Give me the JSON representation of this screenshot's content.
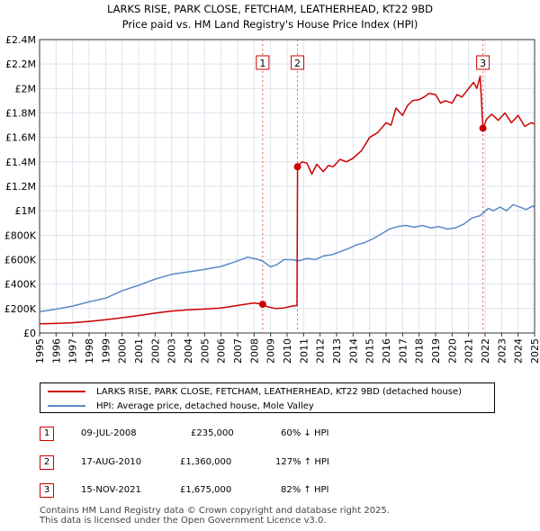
{
  "title_line1": "LARKS RISE, PARK CLOSE, FETCHAM, LEATHERHEAD, KT22 9BD",
  "title_line2": "Price paid vs. HM Land Registry's House Price Index (HPI)",
  "colors": {
    "property": "#cc0000",
    "hpi": "#5b8ac6",
    "grid": "#dde3ee",
    "vline": "#e06666"
  },
  "chart_data": {
    "type": "line",
    "title": "LARKS RISE, PARK CLOSE, FETCHAM, LEATHERHEAD, KT22 9BD — Price paid vs. HM Land Registry's House Price Index (HPI)",
    "xlabel": "",
    "ylabel": "",
    "xlim": [
      1995,
      2025
    ],
    "ylim": [
      0,
      2400000
    ],
    "grid": true,
    "y_ticks": [
      {
        "value": 0,
        "label": "£0"
      },
      {
        "value": 200000,
        "label": "£200K"
      },
      {
        "value": 400000,
        "label": "£400K"
      },
      {
        "value": 600000,
        "label": "£600K"
      },
      {
        "value": 800000,
        "label": "£800K"
      },
      {
        "value": 1000000,
        "label": "£1M"
      },
      {
        "value": 1200000,
        "label": "£1.2M"
      },
      {
        "value": 1400000,
        "label": "£1.4M"
      },
      {
        "value": 1600000,
        "label": "£1.6M"
      },
      {
        "value": 1800000,
        "label": "£1.8M"
      },
      {
        "value": 2000000,
        "label": "£2M"
      },
      {
        "value": 2200000,
        "label": "£2.2M"
      },
      {
        "value": 2400000,
        "label": "£2.4M"
      }
    ],
    "x_ticks": [
      "1995",
      "1996",
      "1997",
      "1998",
      "1999",
      "2000",
      "2001",
      "2002",
      "2003",
      "2004",
      "2005",
      "2006",
      "2007",
      "2008",
      "2009",
      "2010",
      "2011",
      "2012",
      "2013",
      "2014",
      "2015",
      "2016",
      "2017",
      "2018",
      "2019",
      "2020",
      "2021",
      "2022",
      "2023",
      "2024",
      "2025"
    ],
    "series": [
      {
        "name": "LARKS RISE, PARK CLOSE, FETCHAM, LEATHERHEAD, KT22 9BD (detached house)",
        "color": "#cc0000",
        "x": [
          1995,
          1996,
          1997,
          1998,
          1999,
          2000,
          2001,
          2002,
          2003,
          2004,
          2005,
          2006,
          2007,
          2008.0,
          2008.52,
          2008.8,
          2009.3,
          2009.8,
          2010.3,
          2010.6,
          2010.63,
          2010.9,
          2011.2,
          2011.5,
          2011.8,
          2012.2,
          2012.5,
          2012.8,
          2013.2,
          2013.6,
          2014.0,
          2014.5,
          2015.0,
          2015.5,
          2016.0,
          2016.3,
          2016.6,
          2017.0,
          2017.3,
          2017.6,
          2018.0,
          2018.3,
          2018.6,
          2019.0,
          2019.3,
          2019.6,
          2020.0,
          2020.3,
          2020.6,
          2021.0,
          2021.3,
          2021.5,
          2021.7,
          2021.87,
          2022.1,
          2022.4,
          2022.8,
          2023.2,
          2023.6,
          2024.0,
          2024.4,
          2024.8,
          2025.0
        ],
        "y": [
          75000,
          78000,
          84000,
          95000,
          108000,
          125000,
          143000,
          163000,
          180000,
          190000,
          196000,
          205000,
          225000,
          246000,
          235000,
          215000,
          200000,
          205000,
          220000,
          225000,
          1360000,
          1400000,
          1390000,
          1300000,
          1380000,
          1320000,
          1370000,
          1360000,
          1420000,
          1400000,
          1430000,
          1490000,
          1600000,
          1640000,
          1720000,
          1700000,
          1840000,
          1780000,
          1860000,
          1900000,
          1910000,
          1930000,
          1960000,
          1950000,
          1880000,
          1900000,
          1880000,
          1950000,
          1930000,
          2000000,
          2050000,
          2000000,
          2100000,
          1675000,
          1750000,
          1790000,
          1740000,
          1800000,
          1720000,
          1780000,
          1690000,
          1720000,
          1710000
        ],
        "points": [
          {
            "x": 2008.52,
            "y": 235000,
            "label": "1"
          },
          {
            "x": 2010.63,
            "y": 1360000,
            "label": "2"
          },
          {
            "x": 2021.87,
            "y": 1675000,
            "label": "3"
          }
        ]
      },
      {
        "name": "HPI: Average price, detached house, Mole Valley",
        "color": "#5b8ac6",
        "x": [
          1995,
          1996,
          1997,
          1998,
          1999,
          2000,
          2001,
          2002,
          2003,
          2004,
          2005,
          2006,
          2007,
          2007.6,
          2008.0,
          2008.5,
          2009.0,
          2009.4,
          2009.8,
          2010.3,
          2010.7,
          2011.2,
          2011.7,
          2012.2,
          2012.7,
          2013.2,
          2013.7,
          2014.2,
          2014.7,
          2015.2,
          2015.7,
          2016.2,
          2016.7,
          2017.2,
          2017.7,
          2018.2,
          2018.7,
          2019.2,
          2019.7,
          2020.2,
          2020.7,
          2021.2,
          2021.7,
          2022.2,
          2022.5,
          2022.9,
          2023.3,
          2023.7,
          2024.1,
          2024.5,
          2024.9,
          2025.0
        ],
        "y": [
          175000,
          195000,
          220000,
          255000,
          285000,
          345000,
          390000,
          440000,
          480000,
          500000,
          520000,
          545000,
          590000,
          620000,
          610000,
          590000,
          540000,
          560000,
          600000,
          600000,
          590000,
          610000,
          600000,
          630000,
          640000,
          665000,
          690000,
          720000,
          740000,
          770000,
          810000,
          850000,
          870000,
          880000,
          865000,
          880000,
          860000,
          870000,
          850000,
          860000,
          890000,
          940000,
          960000,
          1020000,
          1000000,
          1030000,
          1000000,
          1050000,
          1030000,
          1010000,
          1040000,
          1020000
        ]
      }
    ]
  },
  "legend": {
    "property_label": "LARKS RISE, PARK CLOSE, FETCHAM, LEATHERHEAD, KT22 9BD (detached house)",
    "hpi_label": "HPI: Average price, detached house, Mole Valley"
  },
  "transactions": [
    {
      "num": "1",
      "date": "09-JUL-2008",
      "price": "£235,000",
      "hpi": "60% ↓ HPI"
    },
    {
      "num": "2",
      "date": "17-AUG-2010",
      "price": "£1,360,000",
      "hpi": "127% ↑ HPI"
    },
    {
      "num": "3",
      "date": "15-NOV-2021",
      "price": "£1,675,000",
      "hpi": "82% ↑ HPI"
    }
  ],
  "footer_line1": "Contains HM Land Registry data © Crown copyright and database right 2025.",
  "footer_line2": "This data is licensed under the Open Government Licence v3.0."
}
